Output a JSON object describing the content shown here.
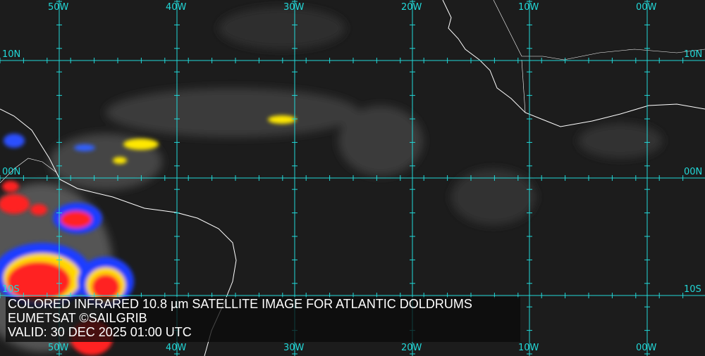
{
  "map": {
    "grid_color": "#22d8d8",
    "coast_color": "#ffffff",
    "longitude_labels_top": [
      "50W",
      "40W",
      "30W",
      "20W",
      "10W",
      "00W"
    ],
    "longitude_labels_bottom": [
      "50W",
      "40W",
      "30W",
      "20W",
      "10W",
      "00W"
    ],
    "latitude_labels_left": [
      "10N",
      "00N",
      "10S"
    ],
    "latitude_labels_right": [
      "10N",
      "00N",
      "10S"
    ]
  },
  "caption": {
    "title": "COLORED INFRARED 10.8 µm SATELLITE IMAGE FOR ATLANTIC DOLDRUMS",
    "source": "EUMETSAT ©SAILGRIB",
    "valid": "VALID:  30 DEC 2025 01:00 UTC"
  }
}
